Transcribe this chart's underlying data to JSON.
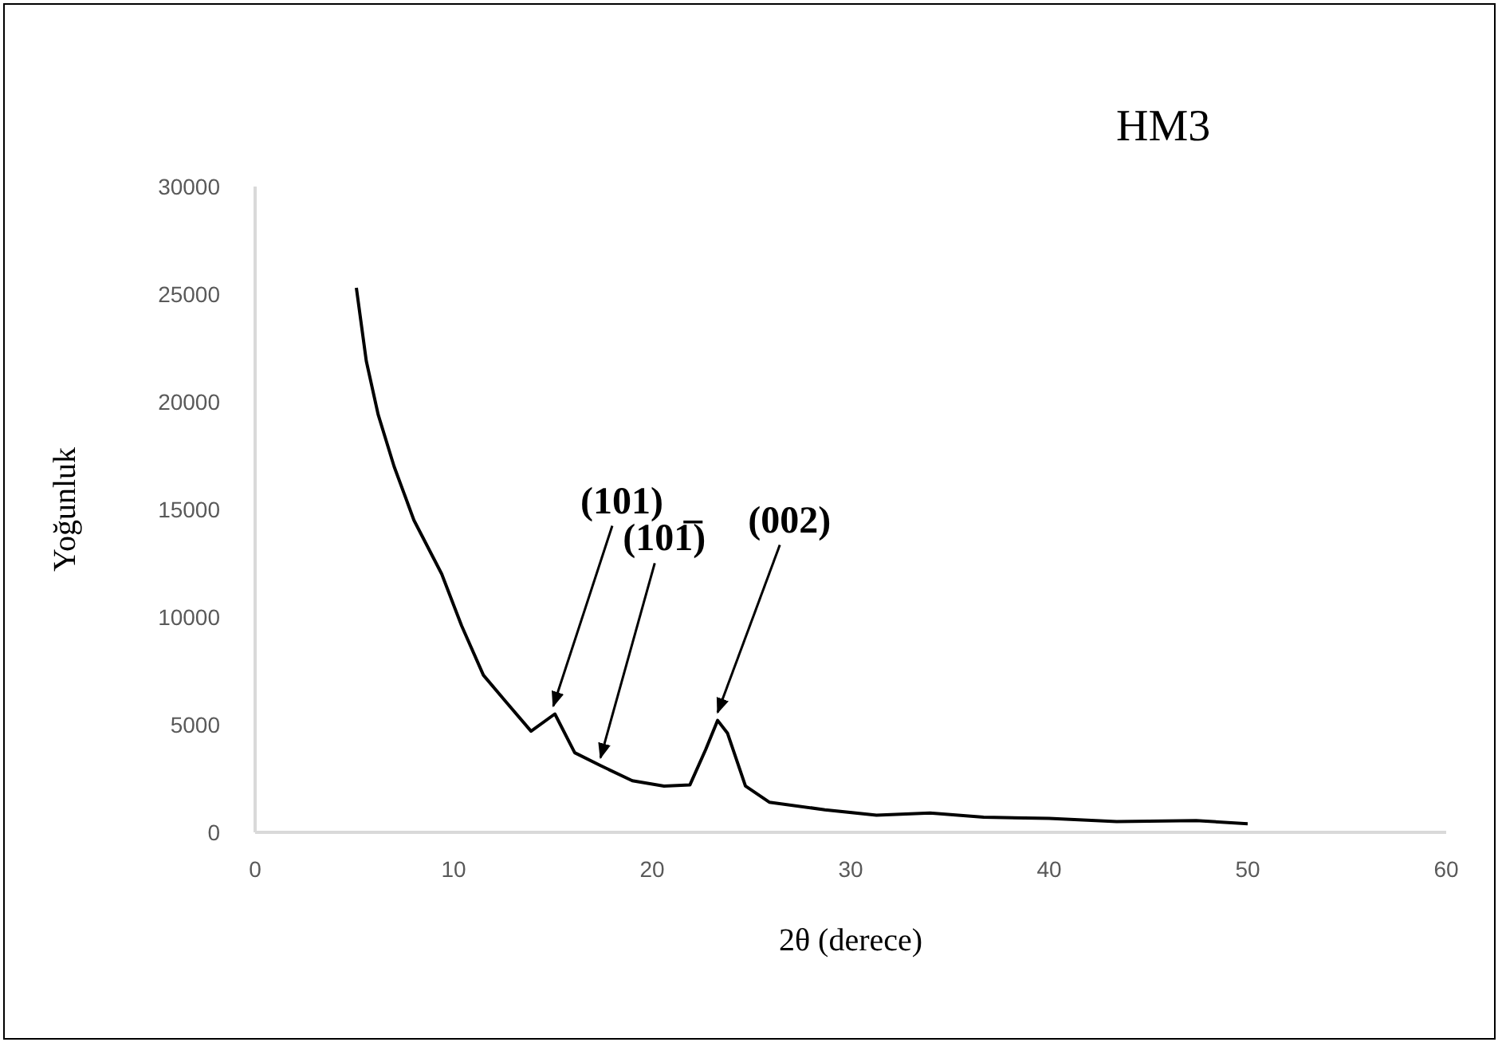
{
  "chart_data": {
    "type": "line",
    "title": "HM3",
    "xlabel": "2θ (derece)",
    "ylabel": "Yoğunluk",
    "xlim": [
      0,
      60
    ],
    "xticks": [
      0,
      10,
      20,
      30,
      40,
      50,
      60
    ],
    "ylim": [
      0,
      30000
    ],
    "yticks": [
      0,
      5000,
      10000,
      15000,
      20000,
      25000,
      30000
    ],
    "grid": false,
    "legend": false,
    "marker": "none",
    "line_style": "solid",
    "series": [
      {
        "color": "#000000",
        "x": [
          5.1,
          5.6,
          6.2,
          7.0,
          8.0,
          9.4,
          10.4,
          11.5,
          12.6,
          13.9,
          15.1,
          16.1,
          17.4,
          19.0,
          20.6,
          21.9,
          22.7,
          23.3,
          23.8,
          24.7,
          25.9,
          28.7,
          31.3,
          34.0,
          36.7,
          40.0,
          43.4,
          47.4,
          50.0
        ],
        "values": [
          25300,
          21900,
          19400,
          17000,
          14500,
          12000,
          9600,
          7300,
          6100,
          4700,
          5500,
          3700,
          3100,
          2400,
          2150,
          2200,
          3850,
          5200,
          4600,
          2150,
          1400,
          1050,
          800,
          900,
          700,
          650,
          500,
          550,
          400
        ]
      }
    ],
    "annotations": [
      {
        "text": "(101)",
        "x": 15.1,
        "y": 5500
      },
      {
        "text": "(101̅)",
        "x": 17.4,
        "y": 3100
      },
      {
        "text": "(002)",
        "x": 23.3,
        "y": 5200
      }
    ]
  }
}
